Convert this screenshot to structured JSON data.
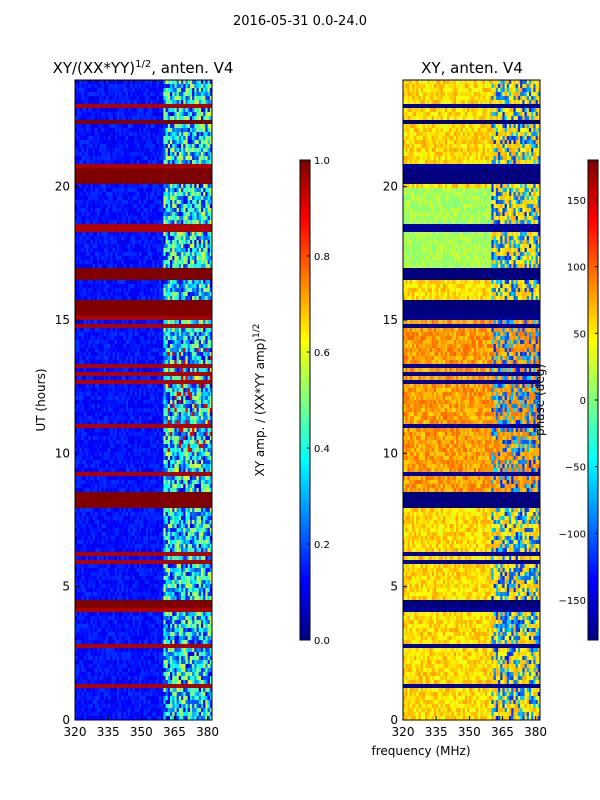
{
  "suptitle": "2016-05-31 0.0-24.0",
  "colors": {
    "jet": [
      "#00007f",
      "#0000ff",
      "#007fff",
      "#00ffff",
      "#7fff7f",
      "#ffff00",
      "#ff7f00",
      "#ff0000",
      "#7f0000"
    ]
  },
  "chart_data": [
    {
      "type": "heatmap",
      "title": "XY/(XX*YY)1/2, anten. V4",
      "title_main": "XY/(XX*YY)",
      "title_sup": "1/2",
      "title_tail": ", anten. V4",
      "xlabel": "",
      "ylabel": "UT (hours)",
      "xlim": [
        320,
        382
      ],
      "ylim": [
        0,
        24
      ],
      "xticks": [
        320,
        335,
        350,
        365,
        380
      ],
      "yticks": [
        0,
        5,
        10,
        15,
        20
      ],
      "colorbar": {
        "label": "XY amp. / (XX*YY amp)1/2",
        "label_main": "XY amp. / (XX*YY amp)",
        "label_sup": "1/2",
        "range": [
          0.0,
          1.0
        ],
        "ticks": [
          "0.0",
          "0.2",
          "0.4",
          "0.6",
          "0.8",
          "1.0"
        ]
      },
      "dominant_value": "low normalized amplitude (blue) across 320-360 MHz; saturated bands (dark red) near 4.2-4.5, 8-8.6, 15.2-15.7, 16.5-16.9, 20.1-20.7, 22.3-22.5 UT"
    },
    {
      "type": "heatmap",
      "title": "XY, anten. V4",
      "xlabel": "frequency (MHz)",
      "ylabel": "",
      "xlim": [
        320,
        382
      ],
      "ylim": [
        0,
        24
      ],
      "xticks": [
        320,
        335,
        350,
        365,
        380
      ],
      "yticks": [
        0,
        5,
        10,
        15,
        20
      ],
      "colorbar": {
        "label": "phase (deg)",
        "range": [
          -180,
          180
        ],
        "ticks": [
          "−150",
          "−100",
          "−50",
          "0",
          "50",
          "100",
          "150"
        ]
      },
      "dominant_value": "phase near +50 to +100 deg (yellow/orange) in 320-360 MHz; dark-blue bands at the same UT ranges as the amplitude panel"
    }
  ]
}
